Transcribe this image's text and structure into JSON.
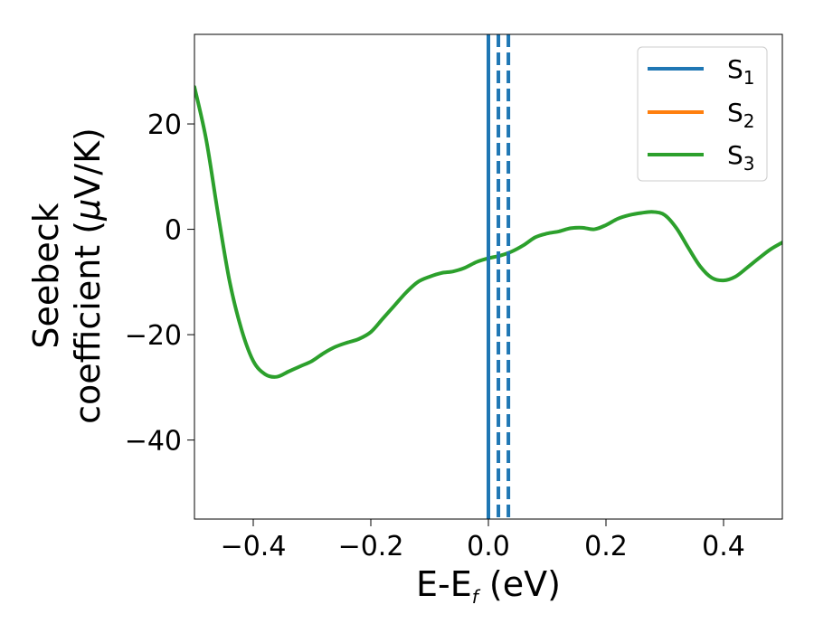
{
  "chart_data": {
    "type": "line",
    "xlabel": {
      "main": "E-E",
      "sub": "f",
      "unit": " (eV)"
    },
    "ylabel": {
      "line1": "Seebeck",
      "line2_pre": "coefficient  (",
      "mu": "μ",
      "line2_post": "V/K)"
    },
    "xlim": [
      -0.5,
      0.5
    ],
    "ylim": [
      -55,
      37
    ],
    "xticks": [
      -0.4,
      -0.2,
      0.0,
      0.2,
      0.4
    ],
    "xtick_labels": [
      "−0.4",
      "−0.2",
      "0.0",
      "0.2",
      "0.4"
    ],
    "yticks": [
      -40,
      -20,
      0,
      20
    ],
    "ytick_labels": [
      "−40",
      "−20",
      "0",
      "20"
    ],
    "legend": {
      "position": "top-right",
      "entries": [
        {
          "name": "S",
          "sub": "1",
          "color": "#1f77b4"
        },
        {
          "name": "S",
          "sub": "2",
          "color": "#ff7f0e"
        },
        {
          "name": "S",
          "sub": "3",
          "color": "#2ca02c"
        }
      ]
    },
    "series": [
      {
        "name": "S3",
        "color": "#2ca02c",
        "x": [
          -0.5,
          -0.48,
          -0.46,
          -0.44,
          -0.42,
          -0.4,
          -0.38,
          -0.36,
          -0.34,
          -0.32,
          -0.3,
          -0.28,
          -0.26,
          -0.24,
          -0.22,
          -0.2,
          -0.18,
          -0.16,
          -0.14,
          -0.12,
          -0.1,
          -0.08,
          -0.06,
          -0.04,
          -0.02,
          0.0,
          0.02,
          0.04,
          0.06,
          0.08,
          0.1,
          0.12,
          0.14,
          0.16,
          0.18,
          0.2,
          0.22,
          0.24,
          0.26,
          0.28,
          0.3,
          0.32,
          0.34,
          0.36,
          0.38,
          0.4,
          0.42,
          0.44,
          0.46,
          0.48,
          0.5
        ],
        "y": [
          27,
          17,
          3,
          -10,
          -19,
          -25,
          -27.5,
          -28,
          -27,
          -26,
          -25,
          -23.5,
          -22.3,
          -21.5,
          -20.8,
          -19.5,
          -17,
          -14.5,
          -12,
          -10,
          -9,
          -8.3,
          -8,
          -7.3,
          -6.2,
          -5.5,
          -5,
          -4.2,
          -3,
          -1.5,
          -0.8,
          -0.4,
          0.2,
          0.3,
          0,
          0.8,
          2,
          2.7,
          3.1,
          3.3,
          2.7,
          0.2,
          -3.5,
          -7,
          -9.2,
          -9.7,
          -9,
          -7.3,
          -5.5,
          -3.8,
          -2.5
        ]
      }
    ],
    "vlines": [
      {
        "x": 0.0,
        "color": "#000000",
        "style": "dashed"
      },
      {
        "x": 0.0,
        "color": "#1f77b4",
        "style": "solid"
      },
      {
        "x": 0.017,
        "color": "#1f77b4",
        "style": "dashed"
      },
      {
        "x": 0.034,
        "color": "#1f77b4",
        "style": "dashed"
      }
    ]
  }
}
